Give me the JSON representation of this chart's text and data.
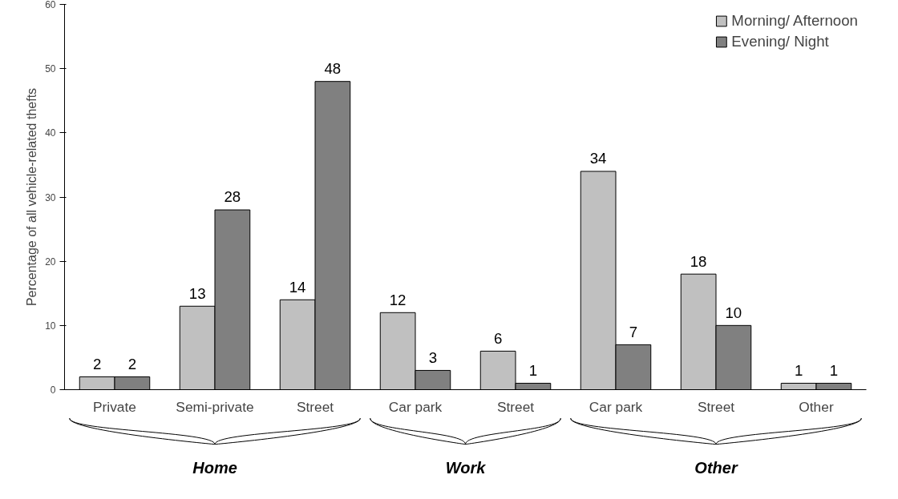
{
  "chart_data": {
    "type": "bar",
    "ylabel": "Percentage of all vehicle-related thefts",
    "categories": [
      "Private",
      "Semi-private",
      "Street",
      "Car park",
      "Street",
      "Car park",
      "Street",
      "Other"
    ],
    "series": [
      {
        "name": "Morning/ Afternoon",
        "color": "#c0c0c0",
        "values": [
          2,
          13,
          14,
          12,
          6,
          34,
          18,
          1
        ]
      },
      {
        "name": "Evening/ Night",
        "color": "#808080",
        "values": [
          2,
          28,
          48,
          3,
          1,
          7,
          10,
          1
        ]
      }
    ],
    "ylim": [
      0,
      60
    ],
    "yticks": [
      0,
      10,
      20,
      30,
      40,
      50,
      60
    ],
    "grid": false,
    "legend": "top right",
    "data_labels": true,
    "annotations": [
      "Home",
      "Work",
      "Other"
    ]
  }
}
